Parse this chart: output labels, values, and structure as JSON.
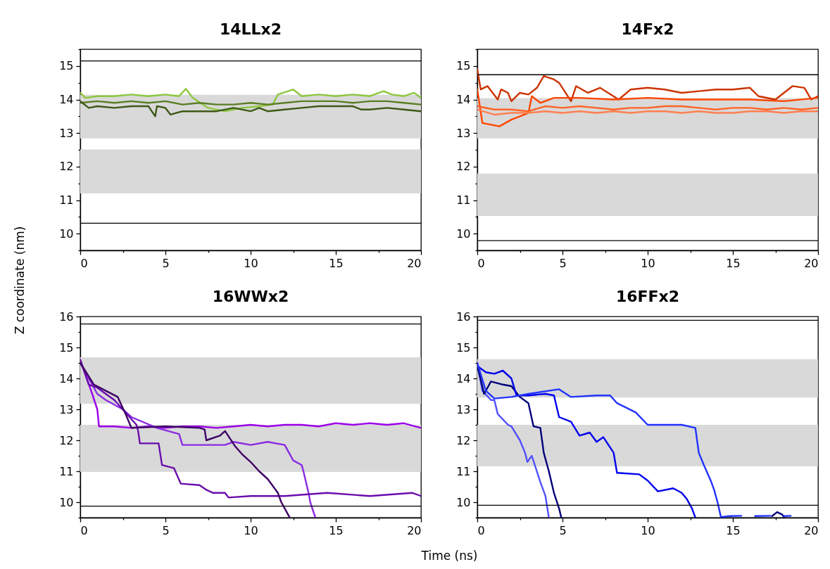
{
  "chart_data": [
    {
      "type": "line",
      "title": "14LLx2",
      "ylabel": "Z coordinate (nm)",
      "xlim": [
        0,
        20
      ],
      "ylim": [
        9.5,
        15.5
      ],
      "xticks": [
        0,
        {
          "value": 2.5,
          "label": null
        },
        5,
        {
          "value": 7.5,
          "label": null
        },
        10,
        {
          "value": 12.5,
          "label": null
        },
        15,
        {
          "value": 17.5,
          "label": null
        },
        20
      ],
      "yticks": [
        {
          "value": 9.5,
          "label": null
        },
        10,
        {
          "value": 10.5,
          "label": null
        },
        11,
        {
          "value": 11.5,
          "label": null
        },
        12,
        {
          "value": 12.5,
          "label": null
        },
        13,
        {
          "value": 13.5,
          "label": null
        },
        14,
        {
          "value": 14.5,
          "label": null
        },
        15,
        {
          "value": 15.5,
          "label": null
        }
      ],
      "bands": [
        {
          "axis": "y",
          "from": 12.84,
          "to": 14.14,
          "color": "#d9d9d9"
        },
        {
          "axis": "y",
          "from": 11.2,
          "to": 12.51,
          "color": "#d9d9d9"
        }
      ],
      "ref_lines": [
        {
          "axis": "y",
          "value": 15.15,
          "color": "#000000"
        },
        {
          "axis": "y",
          "value": 10.31,
          "color": "#000000"
        }
      ],
      "series": [
        {
          "color": "#8dc63f",
          "x": [
            0,
            0.3,
            1,
            2,
            3,
            4,
            5,
            5.8,
            6.2,
            6.6,
            7.5,
            8.5,
            9.5,
            10.5,
            11.3,
            11.6,
            12.2,
            12.5,
            13,
            14,
            15,
            16,
            17,
            17.8,
            18.3,
            19,
            19.6,
            20
          ],
          "values": [
            14.2,
            14.05,
            14.1,
            14.1,
            14.15,
            14.1,
            14.15,
            14.1,
            14.32,
            14.05,
            13.75,
            13.65,
            13.75,
            13.8,
            13.85,
            14.15,
            14.25,
            14.3,
            14.1,
            14.15,
            14.1,
            14.15,
            14.1,
            14.25,
            14.15,
            14.1,
            14.2,
            14.05
          ]
        },
        {
          "color": "#5a7d23",
          "x": [
            0,
            1,
            2,
            3,
            4,
            5,
            6,
            7,
            8,
            9,
            10,
            11,
            12,
            13,
            14,
            15,
            16,
            17,
            18,
            19,
            20
          ],
          "values": [
            13.9,
            13.95,
            13.9,
            13.95,
            13.9,
            13.95,
            13.85,
            13.9,
            13.85,
            13.85,
            13.9,
            13.85,
            13.9,
            13.95,
            13.95,
            13.95,
            13.9,
            13.95,
            13.95,
            13.9,
            13.85
          ]
        },
        {
          "color": "#3d5916",
          "x": [
            0,
            0.5,
            1,
            2,
            3,
            4,
            4.4,
            4.5,
            5,
            5.3,
            6,
            7,
            8,
            9,
            10,
            10.5,
            11,
            12,
            13,
            14,
            15,
            16,
            16.5,
            17,
            18,
            19,
            20
          ],
          "values": [
            13.95,
            13.75,
            13.8,
            13.75,
            13.8,
            13.8,
            13.5,
            13.8,
            13.75,
            13.55,
            13.65,
            13.65,
            13.65,
            13.75,
            13.65,
            13.75,
            13.65,
            13.7,
            13.75,
            13.8,
            13.8,
            13.8,
            13.7,
            13.7,
            13.75,
            13.7,
            13.65
          ]
        }
      ]
    },
    {
      "type": "line",
      "title": "14Fx2",
      "xlim": [
        0,
        20
      ],
      "ylim": [
        9.5,
        15.5
      ],
      "xticks": [
        0,
        {
          "value": 2.5,
          "label": null
        },
        5,
        {
          "value": 7.5,
          "label": null
        },
        10,
        {
          "value": 12.5,
          "label": null
        },
        15,
        {
          "value": 17.5,
          "label": null
        },
        20
      ],
      "yticks": [
        {
          "value": 9.5,
          "label": null
        },
        10,
        {
          "value": 10.5,
          "label": null
        },
        11,
        {
          "value": 11.5,
          "label": null
        },
        12,
        {
          "value": 12.5,
          "label": null
        },
        13,
        {
          "value": 13.5,
          "label": null
        },
        14,
        {
          "value": 14.5,
          "label": null
        },
        15,
        {
          "value": 15.5,
          "label": null
        }
      ],
      "bands": [
        {
          "axis": "y",
          "from": 12.84,
          "to": 14.04,
          "color": "#d9d9d9"
        },
        {
          "axis": "y",
          "from": 10.53,
          "to": 11.79,
          "color": "#d9d9d9"
        }
      ],
      "ref_lines": [
        {
          "axis": "y",
          "value": 14.74,
          "color": "#000000"
        },
        {
          "axis": "y",
          "value": 9.79,
          "color": "#000000"
        }
      ],
      "series": [
        {
          "color": "#cc3300",
          "x": [
            0,
            0.2,
            0.6,
            1.2,
            1.4,
            1.8,
            2.0,
            2.5,
            3.0,
            3.5,
            3.9,
            4.5,
            4.8,
            5.5,
            5.8,
            6.5,
            7.2,
            8.3,
            9,
            10,
            11,
            12,
            13,
            14,
            15,
            16,
            16.5,
            17.5,
            18.5,
            19.2,
            19.6,
            20
          ],
          "values": [
            14.9,
            14.3,
            14.4,
            14.0,
            14.3,
            14.2,
            13.95,
            14.2,
            14.15,
            14.35,
            14.7,
            14.6,
            14.5,
            13.95,
            14.4,
            14.2,
            14.35,
            14.0,
            14.3,
            14.35,
            14.3,
            14.2,
            14.25,
            14.3,
            14.3,
            14.35,
            14.1,
            14.0,
            14.4,
            14.35,
            14.0,
            14.1
          ]
        },
        {
          "color": "#ff4500",
          "x": [
            0,
            0.3,
            1.3,
            2,
            3,
            3.2,
            3.7,
            4.5,
            6,
            8,
            10,
            12,
            14,
            16,
            18,
            20
          ],
          "values": [
            14.3,
            13.3,
            13.2,
            13.4,
            13.6,
            14.1,
            13.9,
            14.05,
            14.05,
            14.0,
            14.05,
            14.0,
            14.0,
            14.0,
            13.95,
            14.05
          ]
        },
        {
          "color": "#ff6326",
          "x": [
            0,
            1,
            2,
            3,
            4,
            5,
            6,
            7,
            8,
            9,
            10,
            11,
            12,
            13,
            14,
            15,
            16,
            17,
            18,
            19,
            20
          ],
          "values": [
            13.8,
            13.7,
            13.7,
            13.65,
            13.8,
            13.75,
            13.8,
            13.75,
            13.7,
            13.75,
            13.75,
            13.8,
            13.8,
            13.75,
            13.7,
            13.75,
            13.75,
            13.7,
            13.75,
            13.7,
            13.75
          ]
        },
        {
          "color": "#ff7f50",
          "x": [
            0,
            1,
            2,
            3,
            4,
            5,
            6,
            7,
            8,
            9,
            10,
            11,
            12,
            13,
            14,
            15,
            16,
            17,
            18,
            19,
            20
          ],
          "values": [
            13.7,
            13.55,
            13.6,
            13.6,
            13.65,
            13.6,
            13.65,
            13.6,
            13.65,
            13.6,
            13.65,
            13.65,
            13.6,
            13.65,
            13.6,
            13.6,
            13.65,
            13.65,
            13.6,
            13.65,
            13.65
          ]
        }
      ]
    },
    {
      "type": "line",
      "title": "16WWx2",
      "xlim": [
        0,
        20
      ],
      "ylim": [
        9.5,
        16
      ],
      "xticks": [
        0,
        {
          "value": 2.5,
          "label": null
        },
        5,
        {
          "value": 7.5,
          "label": null
        },
        10,
        {
          "value": 12.5,
          "label": null
        },
        15,
        {
          "value": 17.5,
          "label": null
        },
        20
      ],
      "yticks": [
        {
          "value": 9.5,
          "label": null
        },
        10,
        {
          "value": 10.5,
          "label": null
        },
        11,
        {
          "value": 11.5,
          "label": null
        },
        12,
        {
          "value": 12.5,
          "label": null
        },
        13,
        {
          "value": 13.5,
          "label": null
        },
        14,
        {
          "value": 14.5,
          "label": null
        },
        15,
        {
          "value": 15.5,
          "label": null
        },
        16
      ],
      "bands": [
        {
          "axis": "y",
          "from": 13.18,
          "to": 14.68,
          "color": "#d9d9d9"
        },
        {
          "axis": "y",
          "from": 10.98,
          "to": 12.5,
          "color": "#d9d9d9"
        }
      ],
      "ref_lines": [
        {
          "axis": "y",
          "value": 15.76,
          "color": "#000000"
        },
        {
          "axis": "y",
          "value": 9.87,
          "color": "#000000"
        }
      ],
      "series": [
        {
          "color": "#9b00e8",
          "x": [
            0,
            0.7,
            1,
            1.1,
            2,
            3,
            4,
            5,
            6,
            7,
            8,
            9,
            10,
            11,
            12,
            13,
            14,
            15,
            16,
            17,
            18,
            19,
            20
          ],
          "values": [
            14.6,
            13.5,
            13.0,
            12.45,
            12.45,
            12.4,
            12.45,
            12.4,
            12.45,
            12.45,
            12.4,
            12.45,
            12.5,
            12.45,
            12.5,
            12.5,
            12.45,
            12.55,
            12.5,
            12.55,
            12.5,
            12.55,
            12.4
          ]
        },
        {
          "color": "#8a2be2",
          "x": [
            0,
            1,
            1.5,
            2.5,
            3,
            4.5,
            5.8,
            6,
            7,
            8.5,
            9,
            10,
            11,
            12,
            12.5,
            13,
            13.1,
            13.4,
            13.5,
            13.8
          ],
          "values": [
            14.5,
            13.5,
            13.3,
            13.0,
            12.75,
            12.4,
            12.2,
            11.85,
            11.85,
            11.85,
            11.95,
            11.85,
            11.95,
            11.85,
            11.35,
            11.2,
            11.0,
            10.3,
            10.0,
            9.5
          ]
        },
        {
          "color": "#6a0dad",
          "x": [
            0,
            0.5,
            1,
            2,
            3.3,
            3.4,
            3.5,
            4.6,
            4.8,
            5.5,
            5.9,
            7,
            7.4,
            7.8,
            8.5,
            8.7,
            10,
            12,
            14.5,
            17,
            19.5,
            20
          ],
          "values": [
            14.6,
            13.8,
            13.7,
            13.3,
            12.5,
            12.3,
            11.9,
            11.9,
            11.2,
            11.1,
            10.6,
            10.55,
            10.4,
            10.3,
            10.3,
            10.15,
            10.2,
            10.2,
            10.3,
            10.2,
            10.3,
            10.2
          ]
        },
        {
          "color": "#3d0066",
          "x": [
            0,
            0.8,
            1.5,
            2.2,
            2.7,
            3,
            5,
            7,
            7.3,
            7.4,
            8.2,
            8.5,
            9.1,
            9.5,
            10,
            10.5,
            11,
            11.6,
            11.8,
            12.2,
            12.3
          ],
          "values": [
            14.5,
            13.8,
            13.6,
            13.4,
            12.8,
            12.4,
            12.45,
            12.4,
            12.35,
            12.0,
            12.15,
            12.3,
            11.8,
            11.55,
            11.3,
            11.0,
            10.75,
            10.3,
            10.0,
            9.6,
            9.5
          ]
        }
      ]
    },
    {
      "type": "line",
      "title": "16FFx2",
      "xlabel": "Time (ns)",
      "xlim": [
        0,
        20
      ],
      "ylim": [
        9.5,
        16
      ],
      "xticks": [
        0,
        {
          "value": 2.5,
          "label": null
        },
        5,
        {
          "value": 7.5,
          "label": null
        },
        10,
        {
          "value": 12.5,
          "label": null
        },
        15,
        {
          "value": 17.5,
          "label": null
        },
        20
      ],
      "yticks": [
        {
          "value": 9.5,
          "label": null
        },
        10,
        {
          "value": 10.5,
          "label": null
        },
        11,
        {
          "value": 11.5,
          "label": null
        },
        12,
        {
          "value": 12.5,
          "label": null
        },
        13,
        {
          "value": 13.5,
          "label": null
        },
        14,
        {
          "value": 14.5,
          "label": null
        },
        15,
        {
          "value": 15.5,
          "label": null
        },
        16
      ],
      "bands": [
        {
          "axis": "y",
          "from": 13.38,
          "to": 14.62,
          "color": "#d9d9d9"
        },
        {
          "axis": "y",
          "from": 11.16,
          "to": 12.5,
          "color": "#d9d9d9"
        }
      ],
      "ref_lines": [
        {
          "axis": "y",
          "value": 15.88,
          "color": "#000000"
        },
        {
          "axis": "y",
          "value": 9.9,
          "color": "#000000"
        }
      ],
      "series": [
        {
          "color": "#5050ff",
          "x": [
            0,
            0.3,
            0.8,
            1,
            1.2,
            1.8,
            2,
            2.5,
            2.8,
            2.94,
            3.2,
            3.7,
            4.0,
            4.2
          ],
          "values": [
            14.5,
            13.6,
            13.3,
            13.3,
            12.85,
            12.5,
            12.45,
            12.0,
            11.6,
            11.3,
            11.5,
            10.65,
            10.2,
            9.5
          ]
        },
        {
          "color": "#00007a",
          "x": [
            0,
            0.4,
            0.8,
            1.5,
            2,
            2.5,
            3,
            3.3,
            3.7,
            3.9,
            4.2,
            4.5,
            4.8,
            4.93,
            5.0,
            17.3,
            17.6,
            17.9,
            18.0
          ],
          "values": [
            14.4,
            13.5,
            13.9,
            13.8,
            13.75,
            13.4,
            13.2,
            12.45,
            12.4,
            11.6,
            11.0,
            10.3,
            9.8,
            9.5,
            null,
            9.55,
            9.68,
            9.6,
            9.52
          ]
        },
        {
          "color": "#0000ee",
          "x": [
            0,
            0.5,
            1,
            1.5,
            2,
            2.3,
            3,
            4,
            4.5,
            4.8,
            5.5,
            6,
            6.6,
            7,
            7.4,
            8,
            8.2,
            9.5,
            10,
            10.6,
            11.5,
            12,
            12.3,
            12.6,
            12.8
          ],
          "values": [
            14.4,
            14.2,
            14.15,
            14.25,
            14.0,
            13.45,
            13.45,
            13.5,
            13.45,
            12.75,
            12.6,
            12.15,
            12.25,
            11.95,
            12.1,
            11.6,
            10.95,
            10.9,
            10.7,
            10.35,
            10.45,
            10.3,
            10.1,
            9.8,
            9.5
          ]
        },
        {
          "color": "#2233ff",
          "x": [
            0,
            0.5,
            1,
            2,
            3,
            4.8,
            5.5,
            7,
            7.8,
            8.2,
            9.3,
            10,
            11,
            12,
            12.8,
            13,
            13.3,
            13.7,
            13.9,
            14.1,
            14.3,
            14.8,
            15.5,
            15.8,
            16.3,
            17.2,
            17.3,
            18.0,
            18.4
          ],
          "values": [
            14.5,
            13.6,
            13.35,
            13.4,
            13.5,
            13.65,
            13.4,
            13.45,
            13.45,
            13.2,
            12.9,
            12.5,
            12.5,
            12.5,
            12.4,
            11.6,
            11.2,
            10.7,
            10.4,
            10.0,
            9.52,
            9.55,
            9.56,
            null,
            9.55,
            9.56,
            null,
            9.55,
            9.56
          ]
        }
      ]
    }
  ]
}
